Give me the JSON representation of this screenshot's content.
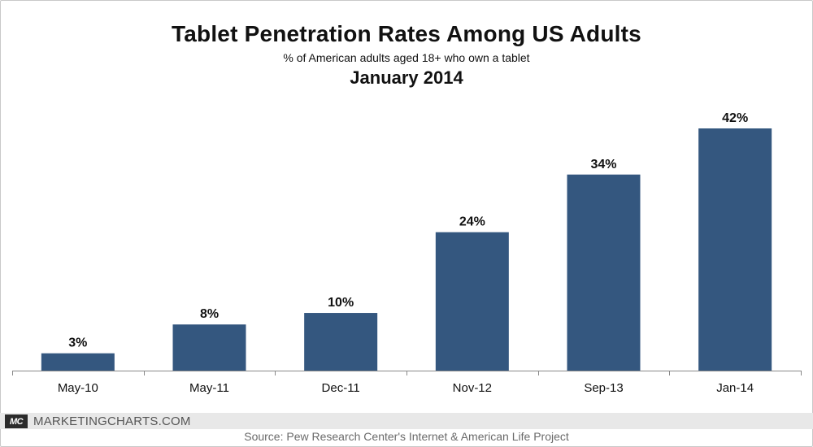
{
  "header": {
    "title": "Tablet Penetration Rates Among US Adults",
    "subtitle": "% of American adults aged 18+ who own a tablet",
    "date_line": "January 2014"
  },
  "footer": {
    "logo_text": "MC",
    "brand": "MARKETINGCHARTS.COM",
    "source": "Source: Pew Research Center's Internet & American Life Project"
  },
  "colors": {
    "bar": "#34577f",
    "axis": "#888888"
  },
  "chart_data": {
    "type": "bar",
    "categories": [
      "May-10",
      "May-11",
      "Dec-11",
      "Nov-12",
      "Sep-13",
      "Jan-14"
    ],
    "values": [
      3,
      8,
      10,
      24,
      34,
      42
    ],
    "data_labels": [
      "3%",
      "8%",
      "10%",
      "24%",
      "34%",
      "42%"
    ],
    "title": "Tablet Penetration Rates Among US Adults",
    "xlabel": "",
    "ylabel": "",
    "ylim": [
      0,
      42
    ],
    "grid": false,
    "legend": "none"
  }
}
